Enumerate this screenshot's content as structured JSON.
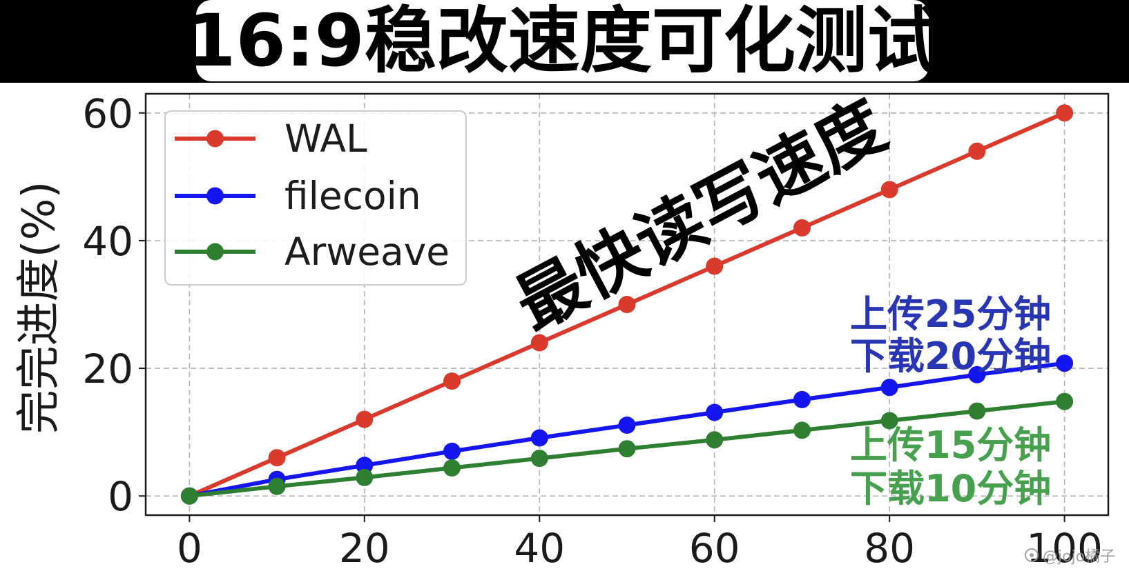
{
  "chart_data": {
    "type": "line",
    "title": "16:9稳改速度可化测试",
    "ylabel": "完完进度(%)",
    "x": [
      0,
      10,
      20,
      30,
      40,
      50,
      60,
      70,
      80,
      90,
      100
    ],
    "xlim": [
      -5,
      105
    ],
    "ylim": [
      -3,
      63
    ],
    "xticks": [
      0,
      20,
      40,
      60,
      80,
      100
    ],
    "yticks": [
      0,
      20,
      40,
      60
    ],
    "grid": true,
    "legend_position": "upper-left",
    "series": [
      {
        "name": "WAL",
        "color": "#d93a2b",
        "values": [
          0,
          6,
          12,
          18,
          24,
          30,
          36,
          42,
          48,
          54,
          60
        ]
      },
      {
        "name": "filecoin",
        "color": "#1515f0",
        "values": [
          0,
          2.6,
          4.8,
          7.0,
          9.1,
          11.1,
          13.1,
          15.1,
          17.0,
          19.0,
          20.8
        ]
      },
      {
        "name": "Arweave",
        "color": "#2f7f32",
        "values": [
          0,
          1.5,
          2.9,
          4.4,
          5.9,
          7.4,
          8.8,
          10.3,
          11.8,
          13.3,
          14.8
        ]
      }
    ],
    "annotations": [
      {
        "text": "最快读写速度",
        "color": "#000000"
      },
      {
        "lines": [
          "上传25分钟",
          "下载20分钟"
        ],
        "color": "#2836b4"
      },
      {
        "lines": [
          "上传15分钟",
          "下载10分钟"
        ],
        "color": "#47a04d"
      }
    ]
  },
  "watermark": {
    "text": "@jojo橘子",
    "icon": "watermark-logo-icon"
  }
}
